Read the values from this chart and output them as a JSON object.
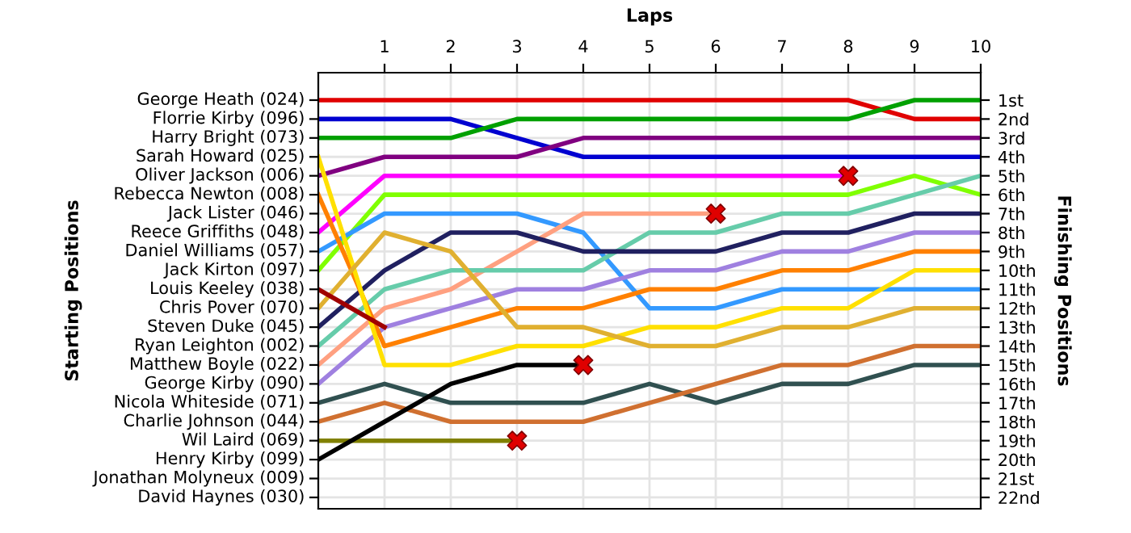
{
  "chart_data": {
    "type": "line",
    "xlabel": "Laps",
    "ylabel": "Finishing Positions",
    "x": [
      0,
      1,
      2,
      3,
      4,
      5,
      6,
      7,
      8,
      9,
      10
    ],
    "xlim": [
      0,
      10
    ],
    "xticks": [
      1,
      2,
      3,
      4,
      5,
      6,
      7,
      8,
      9,
      10
    ],
    "annotations": [
      "George Heath (024)",
      "Florrie Kirby (096)",
      "Harry Bright (073)",
      "Sarah Howard (025)",
      "Oliver Jackson (006)",
      "Rebecca Newton (008)",
      "Jack Lister (046)",
      "Reece Griffiths (048)",
      "Daniel Williams (057)",
      "Jack Kirton (097)",
      "Louis Keeley (038)",
      "Chris Pover (070)",
      "Steven Duke (045)",
      "Ryan Leighton (002)",
      "Matthew Boyle (022)",
      "George Kirby (090)",
      "Nicola Whiteside (071)",
      "Charlie Johnson (044)",
      "Wil Laird (069)",
      "Henry Kirby (099)",
      "Jonathan Molyneux (009)",
      "David Haynes (030)",
      "Starting Positions"
    ],
    "ylim": [
      22.6,
      -0.45
    ],
    "yticks": [
      {
        "value": 1,
        "label": "1st"
      },
      {
        "value": 2,
        "label": "2nd"
      },
      {
        "value": 3,
        "label": "3rd"
      },
      {
        "value": 4,
        "label": "4th"
      },
      {
        "value": 5,
        "label": "5th"
      },
      {
        "value": 6,
        "label": "6th"
      },
      {
        "value": 7,
        "label": "7th"
      },
      {
        "value": 8,
        "label": "8th"
      },
      {
        "value": 9,
        "label": "9th"
      },
      {
        "value": 10,
        "label": "10th"
      },
      {
        "value": 11,
        "label": "11th"
      },
      {
        "value": 12,
        "label": "12th"
      },
      {
        "value": 13,
        "label": "13th"
      },
      {
        "value": 14,
        "label": "14th"
      },
      {
        "value": 15,
        "label": "15th"
      },
      {
        "value": 16,
        "label": "16th"
      },
      {
        "value": 17,
        "label": "17th"
      },
      {
        "value": 18,
        "label": "18th"
      },
      {
        "value": 19,
        "label": "19th"
      },
      {
        "value": 20,
        "label": "20th"
      },
      {
        "value": 21,
        "label": "21st"
      },
      {
        "value": 22,
        "label": "22nd"
      }
    ],
    "grid": true,
    "series": [
      {
        "color": "#e00000",
        "values": [
          1,
          1,
          1,
          1,
          1,
          1,
          1,
          1,
          1,
          2,
          2
        ]
      },
      {
        "color": "#0000d0",
        "values": [
          2,
          2,
          2,
          3,
          4,
          4,
          4,
          4,
          4,
          4,
          4
        ]
      },
      {
        "color": "#00a000",
        "values": [
          3,
          3,
          3,
          2,
          2,
          2,
          2,
          2,
          2,
          1,
          1
        ]
      },
      {
        "color": "#800080",
        "values": [
          5,
          4,
          4,
          4,
          3,
          3,
          3,
          3,
          3,
          3,
          3
        ]
      },
      {
        "color": "#ff00ff",
        "values": [
          8,
          5,
          5,
          5,
          5,
          5,
          5,
          5,
          5,
          null,
          null
        ]
      },
      {
        "color": "#80ff00",
        "values": [
          10,
          6,
          6,
          6,
          6,
          6,
          6,
          6,
          6,
          5,
          6
        ]
      },
      {
        "color": "#3399ff",
        "values": [
          9,
          7,
          7,
          7,
          8,
          12,
          12,
          11,
          11,
          11,
          11
        ]
      },
      {
        "color": "#ffa080",
        "values": [
          15,
          12,
          11,
          9,
          7,
          7,
          7,
          null,
          null,
          null,
          null
        ]
      },
      {
        "color": "#66ccaa",
        "values": [
          14,
          11,
          10,
          10,
          10,
          8,
          8,
          7,
          7,
          6,
          5
        ]
      },
      {
        "color": "#202060",
        "values": [
          13,
          10,
          8,
          8,
          9,
          9,
          9,
          8,
          8,
          7,
          7
        ]
      },
      {
        "color": "#9f80e0",
        "values": [
          16,
          13,
          12,
          11,
          11,
          10,
          10,
          9,
          9,
          8,
          8
        ]
      },
      {
        "color": "#ff8000",
        "values": [
          6,
          14,
          13,
          12,
          12,
          11,
          11,
          10,
          10,
          9,
          9
        ]
      },
      {
        "color": "#ffe000",
        "values": [
          4,
          15,
          15,
          14,
          14,
          13,
          13,
          12,
          12,
          10,
          10
        ]
      },
      {
        "color": "#e0b030",
        "values": [
          12,
          8,
          9,
          13,
          13,
          14,
          14,
          13,
          13,
          12,
          12
        ]
      },
      {
        "color": "#a00000",
        "values": [
          11,
          13,
          null,
          null,
          null,
          null,
          null,
          null,
          null,
          null,
          null
        ]
      },
      {
        "color": "#305050",
        "values": [
          17,
          16,
          17,
          17,
          17,
          16,
          17,
          16,
          16,
          15,
          15
        ]
      },
      {
        "color": "#d07030",
        "values": [
          18,
          17,
          18,
          18,
          18,
          17,
          16,
          15,
          15,
          14,
          14
        ]
      },
      {
        "color": "#808000",
        "values": [
          19,
          19,
          19,
          19,
          null,
          null,
          null,
          null,
          null,
          null,
          null
        ]
      },
      {
        "color": "#000000",
        "values": [
          20,
          18,
          16,
          15,
          15,
          null,
          null,
          null,
          null,
          null,
          null
        ]
      },
      {
        "type": "scatter",
        "marker": "cross",
        "color": "#e00000",
        "x": [
          3,
          4,
          6,
          8
        ],
        "values": [
          19,
          15,
          7,
          5
        ]
      }
    ]
  }
}
